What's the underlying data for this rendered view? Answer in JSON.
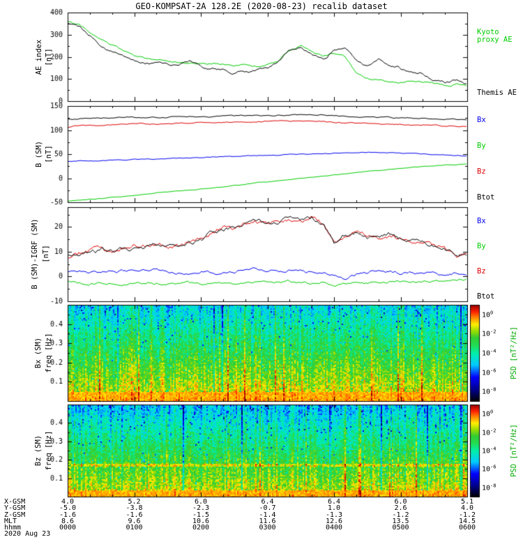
{
  "title": "GEO-KOMPSAT-2A 128.2E (2020-08-23) recalib dataset",
  "date_label": "2020 Aug 23",
  "x_axis": {
    "t_start_min": 0,
    "t_end_min": 360,
    "hour_labels": [
      "0000",
      "0100",
      "0200",
      "0300",
      "0400",
      "0500",
      "0600"
    ]
  },
  "bottom_rows": [
    {
      "label": "X-GSM",
      "values": [
        "4.0",
        "5.2",
        "6.0",
        "6.4",
        "6.4",
        "6.0",
        "5.1"
      ]
    },
    {
      "label": "Y-GSM",
      "values": [
        "-5.0",
        "-3.8",
        "-2.3",
        "-0.7",
        "1.0",
        "2.6",
        "4.0"
      ]
    },
    {
      "label": "Z-GSM",
      "values": [
        "-1.6",
        "-1.6",
        "-1.5",
        "-1.4",
        "-1.3",
        "-1.2",
        "-1.2"
      ]
    },
    {
      "label": "MLT",
      "values": [
        "8.6",
        "9.6",
        "10.6",
        "11.6",
        "12.6",
        "13.5",
        "14.5"
      ]
    },
    {
      "label": "hhmm",
      "values": [
        "0000",
        "0100",
        "0200",
        "0300",
        "0400",
        "0500",
        "0600"
      ]
    }
  ],
  "chart_data": {
    "type": "multi-panel",
    "panels": [
      {
        "type": "line",
        "ylabel_outer": "AE index",
        "ylabel_inner": "[nT]",
        "ylim": [
          0,
          400
        ],
        "yticks": [
          0,
          100,
          200,
          300,
          400
        ],
        "x_step_min": 10,
        "series": [
          {
            "name": "Kyoto proxy AE",
            "color": "#00cc00",
            "noise": 4,
            "seed": 7,
            "values": [
              360,
              345,
              315,
              280,
              252,
              230,
              205,
              192,
              186,
              180,
              176,
              172,
              166,
              170,
              166,
              160,
              164,
              160,
              166,
              180,
              228,
              250,
              222,
              200,
              214,
              200,
              120,
              100,
              92,
              86,
              82,
              90,
              86,
              80,
              72,
              76,
              70
            ]
          },
          {
            "name": "Themis AE",
            "color": "#000000",
            "noise": 6,
            "seed": 13,
            "values": [
              355,
              335,
              300,
              255,
              230,
              205,
              180,
              165,
              172,
              160,
              165,
              185,
              160,
              150,
              142,
              132,
              136,
              140,
              150,
              185,
              235,
              248,
              215,
              192,
              230,
              235,
              180,
              160,
              195,
              170,
              148,
              130,
              125,
              95,
              88,
              96,
              78
            ]
          }
        ],
        "legend": [
          {
            "lines": [
              "Kyoto",
              "proxy AE"
            ],
            "color": "#00cc00"
          },
          {
            "lines": [
              "Themis AE"
            ],
            "color": "#000000"
          }
        ]
      },
      {
        "type": "line",
        "ylabel_outer": "B (SM)",
        "ylabel_inner": "[nT]",
        "ylim": [
          -50,
          150
        ],
        "yticks": [
          -50,
          0,
          50,
          100,
          150
        ],
        "x_step_min": 10,
        "series": [
          {
            "name": "By",
            "color": "#00cc00",
            "noise": 0.6,
            "seed": 21,
            "values": [
              -48,
              -46,
              -44,
              -42,
              -40,
              -38,
              -36,
              -34,
              -31,
              -29,
              -27,
              -25,
              -22,
              -20,
              -18,
              -15,
              -13,
              -10,
              -8,
              -5,
              -3,
              0,
              2,
              5,
              7,
              9,
              12,
              14,
              16,
              18,
              20,
              22,
              24,
              25,
              27,
              28,
              30
            ]
          },
          {
            "name": "Bx",
            "color": "#0000ee",
            "noise": 0.8,
            "seed": 22,
            "values": [
              35,
              36,
              36,
              37,
              38,
              38,
              39,
              40,
              40,
              41,
              42,
              42,
              43,
              44,
              45,
              45,
              46,
              47,
              47,
              48,
              49,
              50,
              50,
              51,
              52,
              53,
              53,
              54,
              54,
              53,
              52,
              51,
              50,
              49,
              48,
              47,
              46
            ]
          },
          {
            "name": "Bz",
            "color": "#dd0000",
            "noise": 1.1,
            "seed": 23,
            "values": [
              106,
              108,
              109,
              110,
              110,
              111,
              112,
              112,
              113,
              113,
              114,
              114,
              115,
              115,
              116,
              116,
              117,
              117,
              118,
              118,
              119,
              120,
              119,
              119,
              117,
              116,
              115,
              114,
              113,
              112,
              111,
              110,
              110,
              109,
              108,
              108,
              107
            ]
          },
          {
            "name": "Btot",
            "color": "#000000",
            "noise": 1.1,
            "seed": 24,
            "values": [
              123,
              124,
              124,
              125,
              125,
              126,
              126,
              126,
              127,
              127,
              127,
              128,
              128,
              128,
              129,
              129,
              130,
              130,
              130,
              131,
              131,
              132,
              131,
              131,
              130,
              129,
              128,
              127,
              127,
              126,
              125,
              124,
              124,
              123,
              123,
              122,
              122
            ]
          }
        ],
        "legend": [
          {
            "lines": [
              "Bx"
            ],
            "color": "#0000ee"
          },
          {
            "lines": [
              "By"
            ],
            "color": "#00cc00"
          },
          {
            "lines": [
              "Bz"
            ],
            "color": "#dd0000"
          },
          {
            "lines": [
              "Btot"
            ],
            "color": "#000000"
          }
        ]
      },
      {
        "type": "line",
        "ylabel_outer": "B (SM)-IGRF (SM)",
        "ylabel_inner": "[nT]",
        "ylim": [
          -10,
          28
        ],
        "yticks": [
          -10,
          0,
          10,
          20
        ],
        "x_step_min": 10,
        "series": [
          {
            "name": "By",
            "color": "#00cc00",
            "noise": 0.5,
            "seed": 31,
            "values": [
              -2,
              -2.5,
              -3,
              -2.5,
              -3,
              -3.5,
              -3,
              -2.5,
              -3,
              -3.2,
              -3,
              -2.8,
              -3,
              -2.5,
              -2.8,
              -3,
              -2.5,
              -2,
              -2.5,
              -2.2,
              -2,
              -2.5,
              -2.8,
              -2.5,
              -3.5,
              -2.5,
              -2,
              -2.2,
              -2.5,
              -2,
              -2.2,
              -2,
              -1.8,
              -2,
              -1.5,
              -1.2,
              -1
            ]
          },
          {
            "name": "Bx",
            "color": "#0000ee",
            "noise": 0.6,
            "seed": 32,
            "values": [
              2,
              2,
              1.5,
              2,
              2.5,
              2,
              1.8,
              2,
              2.2,
              2,
              1.8,
              2,
              2.5,
              2,
              1.5,
              2,
              2.5,
              3,
              2.5,
              2,
              2.5,
              2,
              1.5,
              2,
              0.5,
              -1.5,
              1,
              2,
              2.5,
              1.5,
              1,
              2,
              1.5,
              1,
              0.5,
              1,
              1
            ]
          },
          {
            "name": "Bz",
            "color": "#dd0000",
            "noise": 1.0,
            "seed": 33,
            "values": [
              8,
              9.5,
              10,
              11,
              10,
              11,
              12,
              12.5,
              13,
              12,
              13,
              13.5,
              14,
              18,
              20,
              19,
              21,
              22,
              21,
              22,
              23,
              22,
              24,
              21,
              13,
              17,
              18,
              17,
              16,
              17,
              15,
              14,
              13,
              12,
              11,
              8,
              9
            ]
          },
          {
            "name": "Btot",
            "color": "#000000",
            "noise": 1.0,
            "seed": 34,
            "values": [
              8,
              9.5,
              10,
              11,
              10,
              11,
              12,
              12.5,
              13,
              12,
              13,
              13.5,
              14,
              18,
              20,
              19,
              21,
              22,
              21,
              22,
              23,
              22,
              24,
              21,
              13,
              17,
              18,
              17,
              16,
              17,
              15,
              14,
              13,
              12,
              11,
              8,
              9
            ]
          }
        ],
        "legend": [
          {
            "lines": [
              "Bx"
            ],
            "color": "#0000ee"
          },
          {
            "lines": [
              "By"
            ],
            "color": "#00cc00"
          },
          {
            "lines": [
              "Bz"
            ],
            "color": "#dd0000"
          },
          {
            "lines": [
              "Btot"
            ],
            "color": "#000000"
          }
        ]
      },
      {
        "type": "heatmap",
        "ylabel_outer": "Bx (SM)",
        "ylabel_inner": "freq [Hz]",
        "ylim": [
          0,
          0.5
        ],
        "yticks": [
          0.1,
          0.2,
          0.3,
          0.4
        ],
        "seed": 42,
        "exp_bottom": -0.9,
        "exp_top": -4.9,
        "stripe_amp": 1.0,
        "cell_amp": 0.85,
        "red_band_freq": 0.045,
        "hline_freq": null
      },
      {
        "type": "heatmap",
        "ylabel_outer": "Bz (SM)",
        "ylabel_inner": "freq [Hz]",
        "ylim": [
          0,
          0.5
        ],
        "yticks": [
          0.1,
          0.2,
          0.3,
          0.4
        ],
        "seed": 99,
        "exp_bottom": -1.1,
        "exp_top": -5.2,
        "stripe_amp": 1.0,
        "cell_amp": 0.85,
        "red_band_freq": 0.035,
        "hline_freq": 0.17
      }
    ],
    "colorbar": {
      "label": "PSD [nT²/Hz]",
      "label_color": "#00aa00",
      "tick_exponents": [
        0,
        -2,
        -4,
        -6,
        -8
      ],
      "exp_min": -9,
      "exp_max": 1,
      "colormap": [
        [
          0.0,
          "#000000"
        ],
        [
          0.12,
          "#00008b"
        ],
        [
          0.25,
          "#0000ff"
        ],
        [
          0.38,
          "#00ccff"
        ],
        [
          0.5,
          "#00eeaa"
        ],
        [
          0.58,
          "#22dd55"
        ],
        [
          0.66,
          "#33cc33"
        ],
        [
          0.73,
          "#99dd00"
        ],
        [
          0.8,
          "#ffee00"
        ],
        [
          0.87,
          "#ff8800"
        ],
        [
          0.93,
          "#ff2200"
        ],
        [
          1.0,
          "#990000"
        ]
      ]
    }
  }
}
